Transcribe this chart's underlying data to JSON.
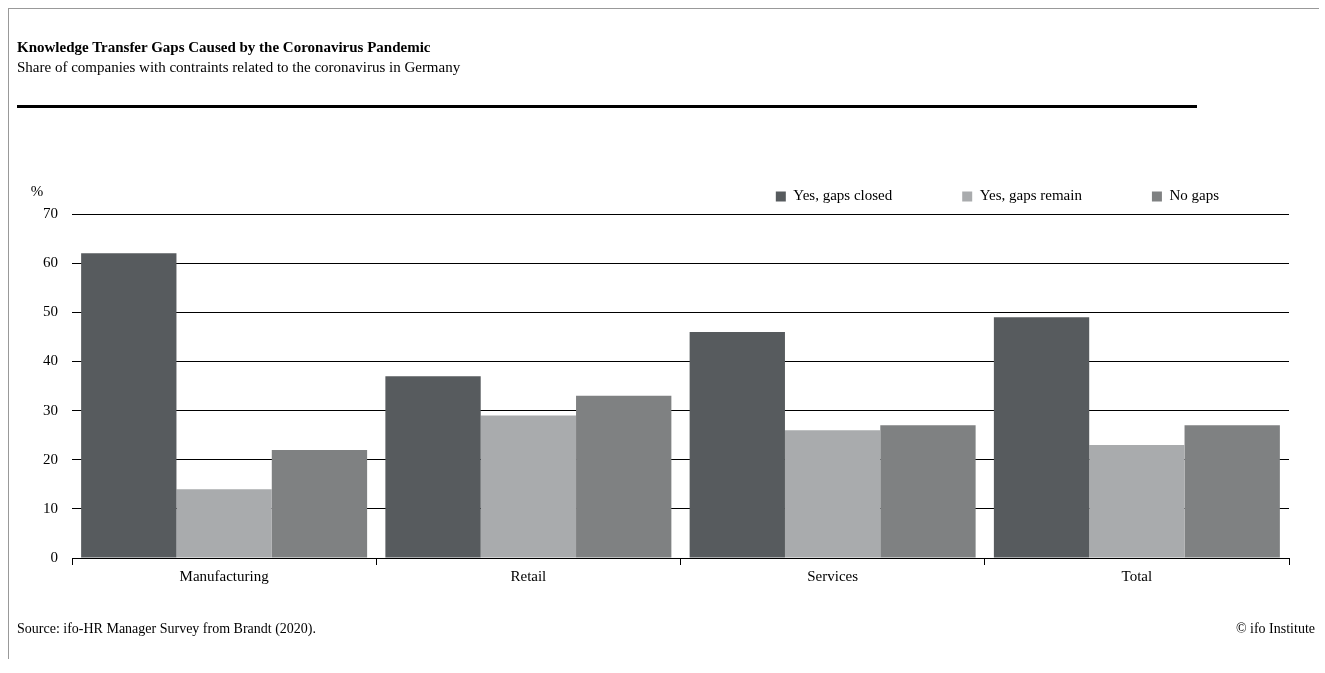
{
  "chart_data": {
    "type": "bar",
    "title": "Knowledge Transfer Gaps Caused by the Coronavirus Pandemic",
    "subtitle": "Share of companies with contraints related to the coronavirus in Germany",
    "ylabel": "%",
    "categories": [
      "Manufacturing",
      "Retail",
      "Services",
      "Total"
    ],
    "series": [
      {
        "name": "Yes, gaps closed",
        "color": "#575b5e",
        "values": [
          62,
          37,
          46,
          49
        ]
      },
      {
        "name": "Yes, gaps remain",
        "color": "#a9abad",
        "values": [
          14,
          29,
          26,
          23
        ]
      },
      {
        "name": "No gaps",
        "color": "#7f8182",
        "values": [
          22,
          33,
          27,
          27
        ]
      }
    ],
    "ylim": [
      0,
      70
    ],
    "yticks": [
      0,
      10,
      20,
      30,
      40,
      50,
      60,
      70
    ],
    "grid": "y",
    "legend": "top right",
    "annotations": [
      "Source: ifo-HR Manager Survey from Brandt (2020).",
      "© ifo Institute"
    ]
  }
}
